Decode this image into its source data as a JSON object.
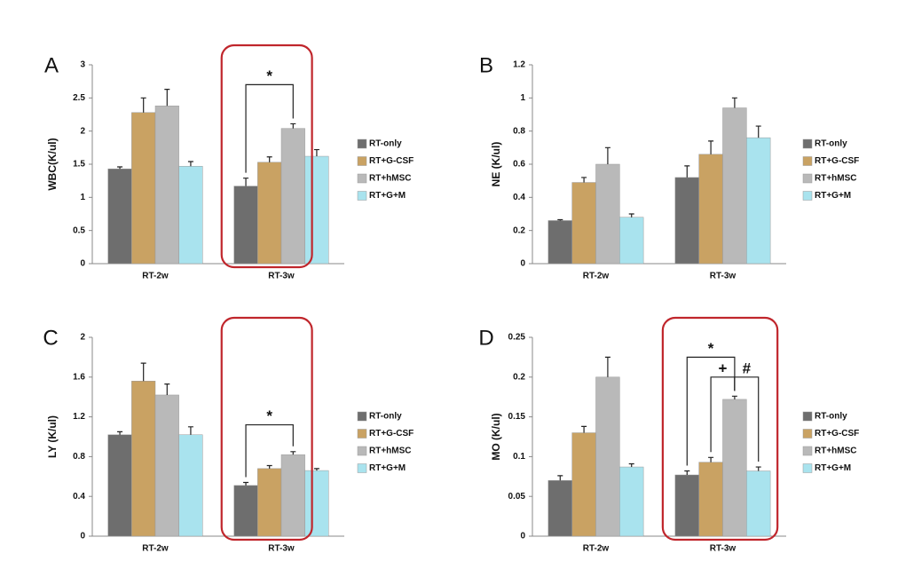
{
  "chart_data": [
    {
      "type": "bar",
      "panel_label": "A",
      "y_label": "WBC(K/ul)",
      "categories": [
        "RT-2w",
        "RT-3w"
      ],
      "ylim": [
        0,
        3
      ],
      "yticks": [
        0,
        0.5,
        1,
        1.5,
        2,
        2.5,
        3
      ],
      "annotations": [
        "*"
      ],
      "series": [
        {
          "name": "RT-only",
          "color": "#6e6e6e",
          "values": [
            1.43,
            1.17
          ],
          "errors": [
            0.03,
            0.12
          ]
        },
        {
          "name": "RT+G-CSF",
          "color": "#c9a263",
          "values": [
            2.28,
            1.53
          ],
          "errors": [
            0.22,
            0.08
          ]
        },
        {
          "name": "RT+hMSC",
          "color": "#b9b9b9",
          "values": [
            2.38,
            2.04
          ],
          "errors": [
            0.25,
            0.07
          ]
        },
        {
          "name": "RT+G+M",
          "color": "#a9e3ee",
          "values": [
            1.47,
            1.62
          ],
          "errors": [
            0.07,
            0.1
          ]
        }
      ]
    },
    {
      "type": "bar",
      "panel_label": "B",
      "y_label": "NE (K/ul)",
      "categories": [
        "RT-2w",
        "RT-3w"
      ],
      "ylim": [
        0,
        1.2
      ],
      "yticks": [
        0,
        0.2,
        0.4,
        0.6,
        0.8,
        1,
        1.2
      ],
      "annotations": [],
      "series": [
        {
          "name": "RT-only",
          "color": "#6e6e6e",
          "values": [
            0.26,
            0.52
          ],
          "errors": [
            0.005,
            0.07
          ]
        },
        {
          "name": "RT+G-CSF",
          "color": "#c9a263",
          "values": [
            0.49,
            0.66
          ],
          "errors": [
            0.03,
            0.08
          ]
        },
        {
          "name": "RT+hMSC",
          "color": "#b9b9b9",
          "values": [
            0.6,
            0.94
          ],
          "errors": [
            0.1,
            0.06
          ]
        },
        {
          "name": "RT+G+M",
          "color": "#a9e3ee",
          "values": [
            0.28,
            0.76
          ],
          "errors": [
            0.02,
            0.07
          ]
        }
      ]
    },
    {
      "type": "bar",
      "panel_label": "C",
      "y_label": "LY (K/ul)",
      "categories": [
        "RT-2w",
        "RT-3w"
      ],
      "ylim": [
        0,
        2
      ],
      "yticks": [
        0,
        0.4,
        0.8,
        1.2,
        1.6,
        2
      ],
      "annotations": [
        "*"
      ],
      "series": [
        {
          "name": "RT-only",
          "color": "#6e6e6e",
          "values": [
            1.02,
            0.51
          ],
          "errors": [
            0.03,
            0.03
          ]
        },
        {
          "name": "RT+G-CSF",
          "color": "#c9a263",
          "values": [
            1.56,
            0.68
          ],
          "errors": [
            0.18,
            0.03
          ]
        },
        {
          "name": "RT+hMSC",
          "color": "#b9b9b9",
          "values": [
            1.42,
            0.82
          ],
          "errors": [
            0.11,
            0.03
          ]
        },
        {
          "name": "RT+G+M",
          "color": "#a9e3ee",
          "values": [
            1.02,
            0.66
          ],
          "errors": [
            0.08,
            0.02
          ]
        }
      ]
    },
    {
      "type": "bar",
      "panel_label": "D",
      "y_label": "MO (K/ul)",
      "categories": [
        "RT-2w",
        "RT-3w"
      ],
      "ylim": [
        0,
        0.25
      ],
      "yticks": [
        0,
        0.05,
        0.1,
        0.15,
        0.2,
        0.25
      ],
      "annotations": [
        "*",
        "+",
        "#"
      ],
      "series": [
        {
          "name": "RT-only",
          "color": "#6e6e6e",
          "values": [
            0.07,
            0.077
          ],
          "errors": [
            0.006,
            0.005
          ]
        },
        {
          "name": "RT+G-CSF",
          "color": "#c9a263",
          "values": [
            0.13,
            0.093
          ],
          "errors": [
            0.008,
            0.006
          ]
        },
        {
          "name": "RT+hMSC",
          "color": "#b9b9b9",
          "values": [
            0.2,
            0.172
          ],
          "errors": [
            0.025,
            0.004
          ]
        },
        {
          "name": "RT+G+M",
          "color": "#a9e3ee",
          "values": [
            0.087,
            0.082
          ],
          "errors": [
            0.004,
            0.005
          ]
        }
      ]
    }
  ]
}
